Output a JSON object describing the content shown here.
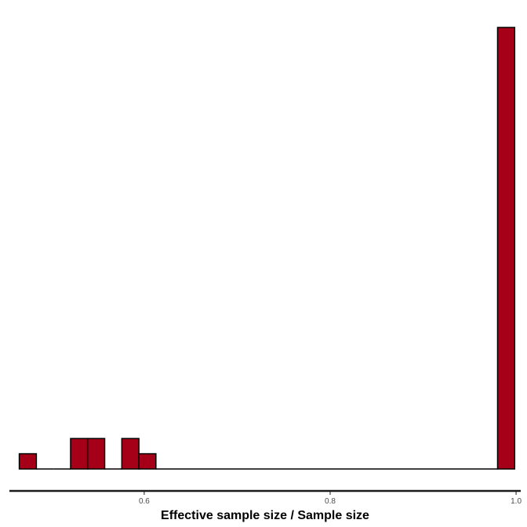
{
  "chart_data": {
    "type": "histogram",
    "title": "",
    "xlabel": "Effective sample size / Sample size",
    "ylabel": "",
    "xlim": [
      0.455,
      1.005
    ],
    "ylim": [
      0,
      29
    ],
    "bin_width": 0.01837,
    "x_ticks": [
      {
        "value": 0.6,
        "label": "0.6"
      },
      {
        "value": 0.8,
        "label": "0.8"
      },
      {
        "value": 1.0,
        "label": "1.0"
      }
    ],
    "bins": [
      {
        "x_start": 0.4656,
        "x_end": 0.484,
        "count": 1
      },
      {
        "x_start": 0.484,
        "x_end": 0.5024,
        "count": 0
      },
      {
        "x_start": 0.5024,
        "x_end": 0.5208,
        "count": 0
      },
      {
        "x_start": 0.5208,
        "x_end": 0.5391,
        "count": 2
      },
      {
        "x_start": 0.5391,
        "x_end": 0.5575,
        "count": 2
      },
      {
        "x_start": 0.5575,
        "x_end": 0.5759,
        "count": 0
      },
      {
        "x_start": 0.5759,
        "x_end": 0.5943,
        "count": 2
      },
      {
        "x_start": 0.5943,
        "x_end": 0.6126,
        "count": 1
      },
      {
        "x_start": 0.6126,
        "x_end": 0.9801,
        "count": 0
      },
      {
        "x_start": 0.9801,
        "x_end": 0.9985,
        "count": 29
      }
    ],
    "grid": false,
    "legend": "none",
    "colors": {
      "bar_fill": "#a50018",
      "bar_stroke": "#000000",
      "axis_line": "#1a1a1a"
    }
  }
}
